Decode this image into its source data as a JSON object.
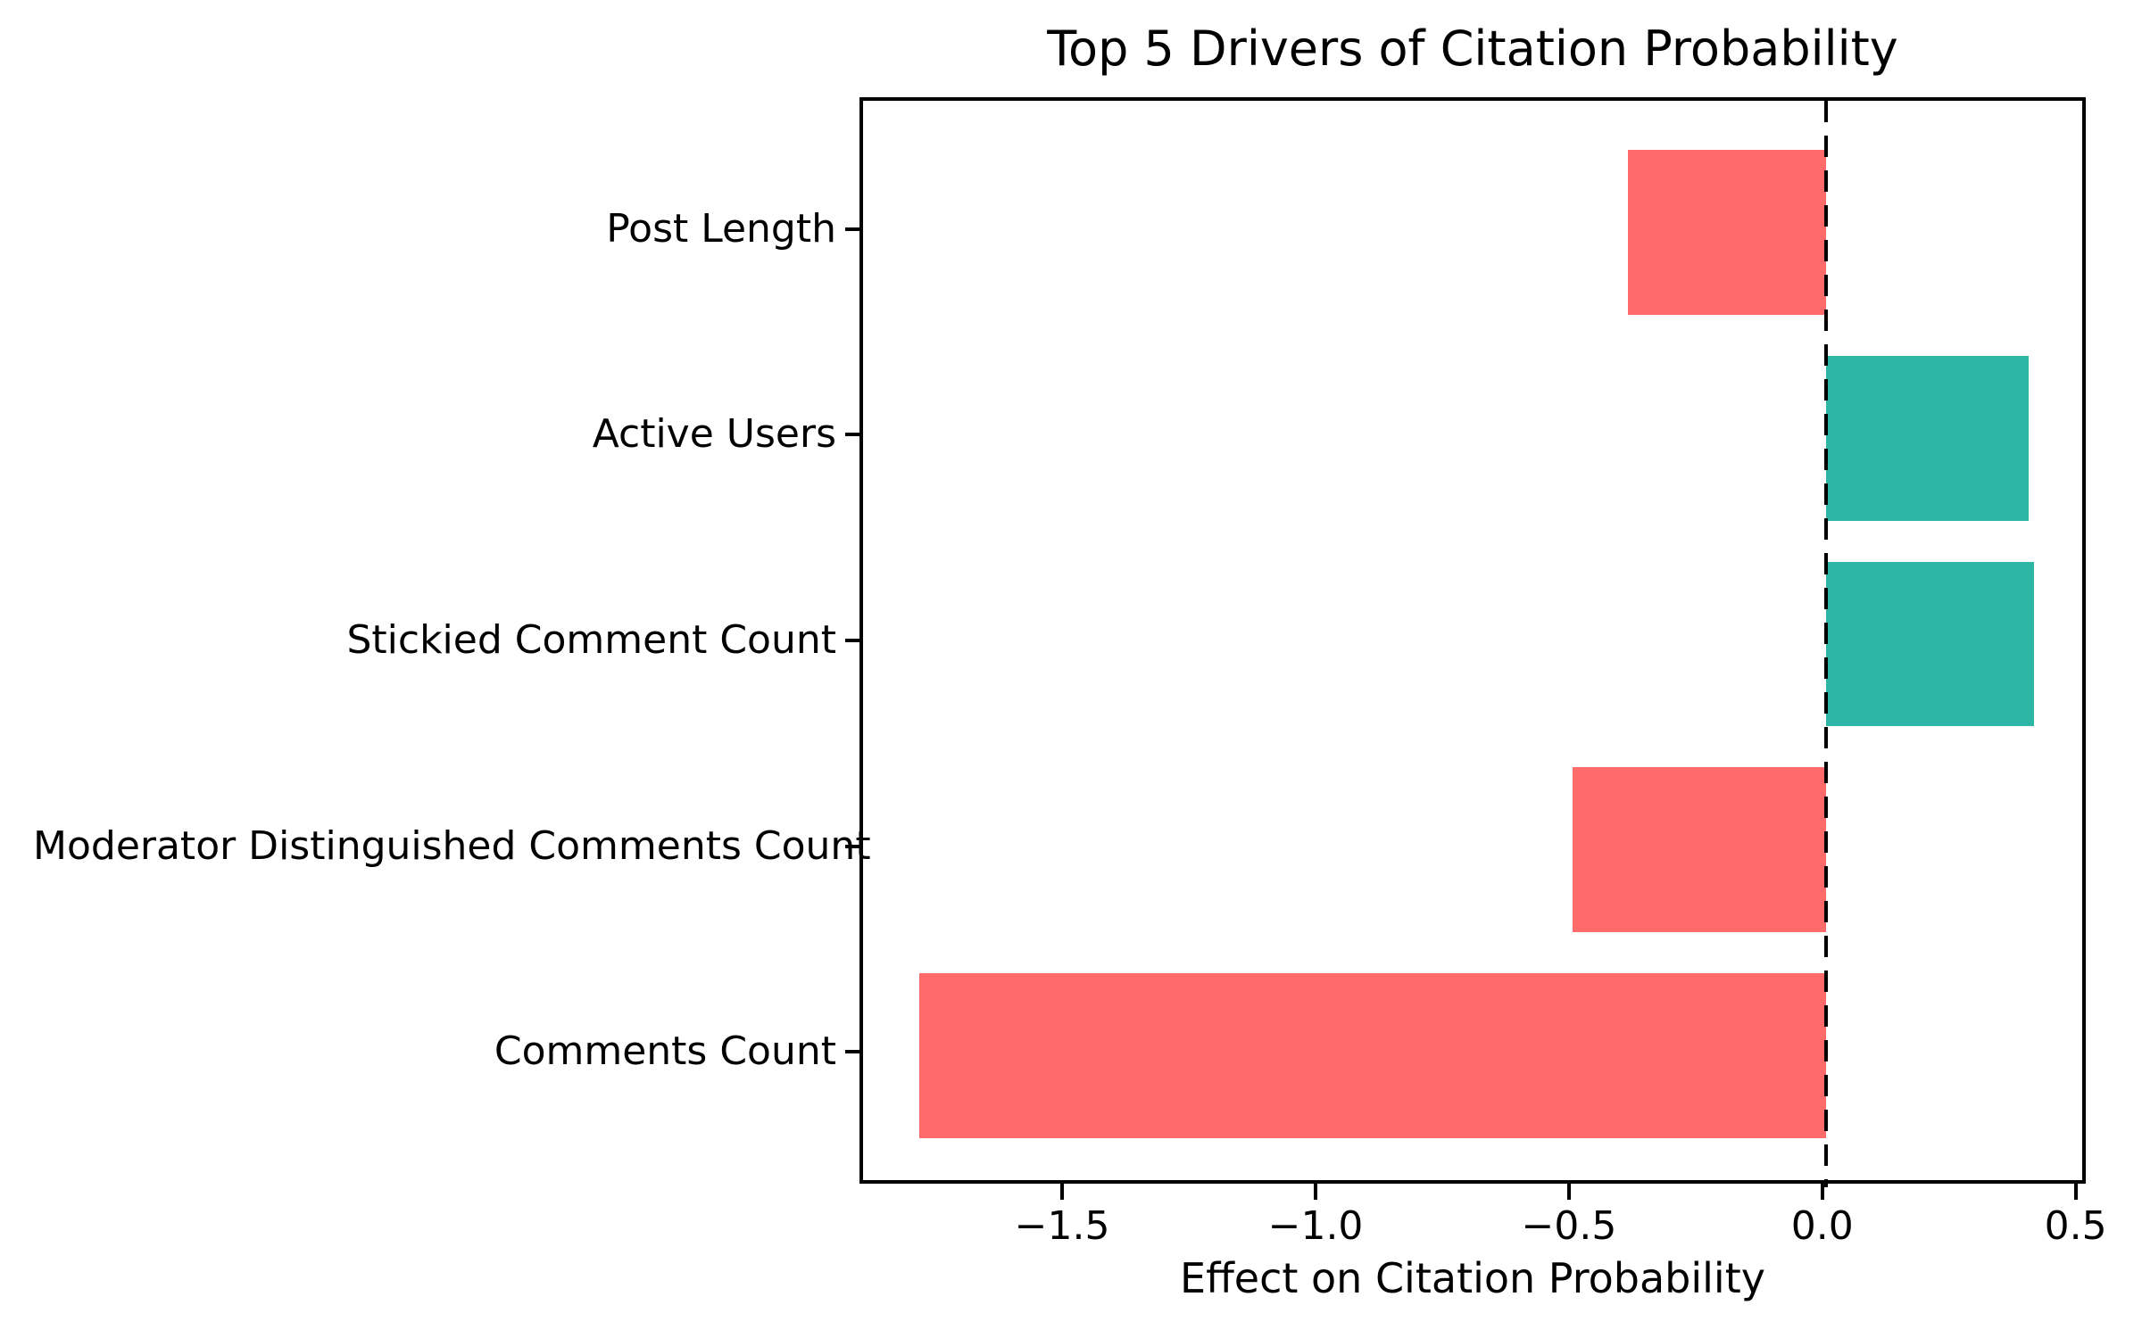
{
  "title": "Top 5 Drivers of Citation Probability",
  "chart_data": {
    "type": "bar",
    "orientation": "horizontal",
    "title": "Top 5 Drivers of Citation Probability",
    "xlabel": "Effect on Citation Probability",
    "ylabel": "",
    "categories": [
      "Post Length",
      "Active Users",
      "Stickied Comment Count",
      "Moderator Distinguished Comments Count",
      "Comments Count"
    ],
    "values": [
      -0.39,
      0.4,
      0.41,
      -0.5,
      -1.79
    ],
    "bar_colors": [
      "#FF6B6B",
      "#2DB5A5",
      "#2DB5A5",
      "#FF6B6B",
      "#FF6B6B"
    ],
    "colors": {
      "positive": "#2DB5A5",
      "negative": "#FF6B6B",
      "axis": "#000000",
      "background": "#ffffff"
    },
    "xlim": [
      -1.9,
      0.52
    ],
    "xticks": [
      -1.5,
      -1.0,
      -0.5,
      0.0,
      0.5
    ],
    "xtick_labels": [
      "−1.5",
      "−1.0",
      "−0.5",
      "0.0",
      "0.5"
    ],
    "grid": false,
    "legend": null,
    "zero_line": {
      "x": 0,
      "style": "dashed",
      "color": "#000000"
    },
    "bar_fraction": 0.8,
    "y_outer_pad": 0.64
  }
}
